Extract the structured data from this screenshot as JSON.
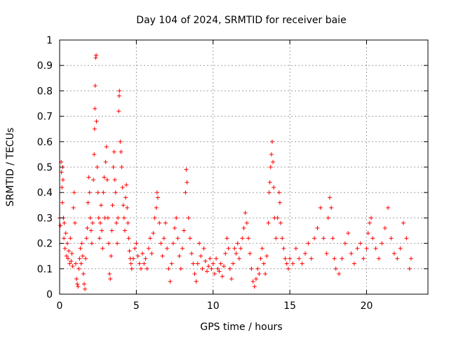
{
  "chart_data": {
    "type": "scatter",
    "title": "Day 104 of 2024, SRMTID for receiver baie",
    "xlabel": "GPS time / hours",
    "ylabel": "SRMTID / TECUs",
    "xlim": [
      0,
      24
    ],
    "ylim": [
      0,
      1
    ],
    "xticks": [
      0,
      5,
      10,
      15,
      20
    ],
    "yticks": [
      0,
      0.1,
      0.2,
      0.3,
      0.4,
      0.5,
      0.6,
      0.7,
      0.8,
      0.9,
      1
    ],
    "grid": true,
    "marker": "+",
    "color": "#ff0000",
    "series": [
      {
        "name": "SRMTID",
        "points": [
          [
            0.0,
            0.3
          ],
          [
            0.05,
            0.27
          ],
          [
            0.1,
            0.52
          ],
          [
            0.12,
            0.48
          ],
          [
            0.15,
            0.42
          ],
          [
            0.18,
            0.36
          ],
          [
            0.2,
            0.5
          ],
          [
            0.22,
            0.45
          ],
          [
            0.25,
            0.3
          ],
          [
            0.28,
            0.22
          ],
          [
            0.3,
            0.28
          ],
          [
            0.35,
            0.18
          ],
          [
            0.4,
            0.24
          ],
          [
            0.45,
            0.15
          ],
          [
            0.5,
            0.2
          ],
          [
            0.55,
            0.14
          ],
          [
            0.6,
            0.17
          ],
          [
            0.65,
            0.12
          ],
          [
            0.7,
            0.22
          ],
          [
            0.75,
            0.13
          ],
          [
            0.8,
            0.16
          ],
          [
            0.85,
            0.11
          ],
          [
            0.9,
            0.34
          ],
          [
            0.95,
            0.4
          ],
          [
            1.0,
            0.28
          ],
          [
            1.05,
            0.12
          ],
          [
            1.1,
            0.06
          ],
          [
            1.15,
            0.04
          ],
          [
            1.2,
            0.03
          ],
          [
            1.25,
            0.1
          ],
          [
            1.3,
            0.14
          ],
          [
            1.35,
            0.18
          ],
          [
            1.4,
            0.12
          ],
          [
            1.45,
            0.2
          ],
          [
            1.5,
            0.15
          ],
          [
            1.55,
            0.08
          ],
          [
            1.6,
            0.04
          ],
          [
            1.65,
            0.02
          ],
          [
            1.7,
            0.14
          ],
          [
            1.75,
            0.22
          ],
          [
            1.8,
            0.26
          ],
          [
            1.85,
            0.36
          ],
          [
            1.9,
            0.46
          ],
          [
            1.95,
            0.4
          ],
          [
            2.0,
            0.3
          ],
          [
            2.05,
            0.25
          ],
          [
            2.1,
            0.2
          ],
          [
            2.15,
            0.28
          ],
          [
            2.2,
            0.45
          ],
          [
            2.25,
            0.55
          ],
          [
            2.28,
            0.65
          ],
          [
            2.3,
            0.73
          ],
          [
            2.32,
            0.82
          ],
          [
            2.35,
            0.93
          ],
          [
            2.38,
            0.94
          ],
          [
            2.4,
            0.68
          ],
          [
            2.45,
            0.5
          ],
          [
            2.5,
            0.4
          ],
          [
            2.55,
            0.3
          ],
          [
            2.6,
            0.22
          ],
          [
            2.65,
            0.28
          ],
          [
            2.7,
            0.35
          ],
          [
            2.75,
            0.25
          ],
          [
            2.8,
            0.18
          ],
          [
            2.85,
            0.4
          ],
          [
            2.9,
            0.46
          ],
          [
            2.95,
            0.3
          ],
          [
            3.0,
            0.52
          ],
          [
            3.05,
            0.58
          ],
          [
            3.1,
            0.45
          ],
          [
            3.15,
            0.3
          ],
          [
            3.2,
            0.2
          ],
          [
            3.25,
            0.08
          ],
          [
            3.3,
            0.06
          ],
          [
            3.35,
            0.15
          ],
          [
            3.4,
            0.25
          ],
          [
            3.45,
            0.35
          ],
          [
            3.5,
            0.5
          ],
          [
            3.55,
            0.56
          ],
          [
            3.6,
            0.45
          ],
          [
            3.65,
            0.4
          ],
          [
            3.7,
            0.28
          ],
          [
            3.75,
            0.2
          ],
          [
            3.8,
            0.3
          ],
          [
            3.85,
            0.72
          ],
          [
            3.88,
            0.78
          ],
          [
            3.9,
            0.8
          ],
          [
            3.95,
            0.6
          ],
          [
            4.0,
            0.56
          ],
          [
            4.05,
            0.5
          ],
          [
            4.1,
            0.42
          ],
          [
            4.15,
            0.35
          ],
          [
            4.2,
            0.3
          ],
          [
            4.25,
            0.25
          ],
          [
            4.3,
            0.38
          ],
          [
            4.35,
            0.43
          ],
          [
            4.4,
            0.34
          ],
          [
            4.45,
            0.28
          ],
          [
            4.5,
            0.22
          ],
          [
            4.55,
            0.17
          ],
          [
            4.6,
            0.14
          ],
          [
            4.65,
            0.12
          ],
          [
            4.7,
            0.1
          ],
          [
            4.8,
            0.14
          ],
          [
            4.9,
            0.18
          ],
          [
            5.0,
            0.2
          ],
          [
            5.1,
            0.15
          ],
          [
            5.2,
            0.12
          ],
          [
            5.3,
            0.1
          ],
          [
            5.4,
            0.16
          ],
          [
            5.5,
            0.12
          ],
          [
            5.6,
            0.14
          ],
          [
            5.7,
            0.1
          ],
          [
            5.8,
            0.18
          ],
          [
            5.9,
            0.22
          ],
          [
            6.0,
            0.16
          ],
          [
            6.1,
            0.24
          ],
          [
            6.2,
            0.3
          ],
          [
            6.3,
            0.34
          ],
          [
            6.35,
            0.4
          ],
          [
            6.4,
            0.38
          ],
          [
            6.5,
            0.28
          ],
          [
            6.6,
            0.2
          ],
          [
            6.7,
            0.15
          ],
          [
            6.8,
            0.22
          ],
          [
            6.9,
            0.28
          ],
          [
            7.0,
            0.18
          ],
          [
            7.1,
            0.1
          ],
          [
            7.2,
            0.05
          ],
          [
            7.3,
            0.12
          ],
          [
            7.4,
            0.2
          ],
          [
            7.5,
            0.26
          ],
          [
            7.6,
            0.3
          ],
          [
            7.7,
            0.22
          ],
          [
            7.8,
            0.15
          ],
          [
            7.9,
            0.1
          ],
          [
            8.0,
            0.18
          ],
          [
            8.1,
            0.25
          ],
          [
            8.2,
            0.4
          ],
          [
            8.25,
            0.49
          ],
          [
            8.3,
            0.44
          ],
          [
            8.4,
            0.3
          ],
          [
            8.5,
            0.22
          ],
          [
            8.6,
            0.16
          ],
          [
            8.7,
            0.12
          ],
          [
            8.8,
            0.08
          ],
          [
            8.9,
            0.05
          ],
          [
            9.0,
            0.12
          ],
          [
            9.1,
            0.2
          ],
          [
            9.2,
            0.15
          ],
          [
            9.3,
            0.1
          ],
          [
            9.4,
            0.18
          ],
          [
            9.5,
            0.13
          ],
          [
            9.6,
            0.09
          ],
          [
            9.7,
            0.11
          ],
          [
            9.8,
            0.14
          ],
          [
            9.9,
            0.1
          ],
          [
            10.0,
            0.12
          ],
          [
            10.1,
            0.08
          ],
          [
            10.2,
            0.14
          ],
          [
            10.3,
            0.1
          ],
          [
            10.4,
            0.09
          ],
          [
            10.5,
            0.12
          ],
          [
            10.6,
            0.07
          ],
          [
            10.7,
            0.11
          ],
          [
            10.8,
            0.16
          ],
          [
            10.9,
            0.22
          ],
          [
            11.0,
            0.18
          ],
          [
            11.1,
            0.1
          ],
          [
            11.2,
            0.06
          ],
          [
            11.3,
            0.12
          ],
          [
            11.4,
            0.18
          ],
          [
            11.5,
            0.16
          ],
          [
            11.6,
            0.2
          ],
          [
            11.7,
            0.14
          ],
          [
            11.8,
            0.18
          ],
          [
            11.9,
            0.22
          ],
          [
            12.0,
            0.26
          ],
          [
            12.1,
            0.32
          ],
          [
            12.2,
            0.28
          ],
          [
            12.3,
            0.22
          ],
          [
            12.4,
            0.16
          ],
          [
            12.5,
            0.1
          ],
          [
            12.6,
            0.05
          ],
          [
            12.7,
            0.03
          ],
          [
            12.8,
            0.06
          ],
          [
            12.9,
            0.1
          ],
          [
            13.0,
            0.08
          ],
          [
            13.1,
            0.14
          ],
          [
            13.2,
            0.18
          ],
          [
            13.3,
            0.12
          ],
          [
            13.4,
            0.08
          ],
          [
            13.5,
            0.15
          ],
          [
            13.6,
            0.28
          ],
          [
            13.65,
            0.4
          ],
          [
            13.7,
            0.44
          ],
          [
            13.75,
            0.5
          ],
          [
            13.8,
            0.55
          ],
          [
            13.85,
            0.6
          ],
          [
            13.9,
            0.52
          ],
          [
            13.95,
            0.42
          ],
          [
            14.0,
            0.3
          ],
          [
            14.1,
            0.22
          ],
          [
            14.2,
            0.3
          ],
          [
            14.3,
            0.4
          ],
          [
            14.35,
            0.36
          ],
          [
            14.4,
            0.28
          ],
          [
            14.5,
            0.22
          ],
          [
            14.6,
            0.18
          ],
          [
            14.7,
            0.14
          ],
          [
            14.8,
            0.12
          ],
          [
            14.9,
            0.1
          ],
          [
            15.0,
            0.14
          ],
          [
            15.2,
            0.12
          ],
          [
            15.4,
            0.18
          ],
          [
            15.6,
            0.14
          ],
          [
            15.8,
            0.12
          ],
          [
            16.0,
            0.16
          ],
          [
            16.2,
            0.2
          ],
          [
            16.4,
            0.14
          ],
          [
            16.6,
            0.22
          ],
          [
            16.8,
            0.26
          ],
          [
            17.0,
            0.34
          ],
          [
            17.2,
            0.22
          ],
          [
            17.4,
            0.16
          ],
          [
            17.5,
            0.3
          ],
          [
            17.6,
            0.38
          ],
          [
            17.7,
            0.34
          ],
          [
            17.8,
            0.22
          ],
          [
            17.9,
            0.14
          ],
          [
            18.0,
            0.1
          ],
          [
            18.2,
            0.08
          ],
          [
            18.4,
            0.14
          ],
          [
            18.6,
            0.2
          ],
          [
            18.8,
            0.24
          ],
          [
            19.0,
            0.16
          ],
          [
            19.2,
            0.12
          ],
          [
            19.4,
            0.18
          ],
          [
            19.6,
            0.2
          ],
          [
            19.8,
            0.14
          ],
          [
            20.0,
            0.18
          ],
          [
            20.1,
            0.24
          ],
          [
            20.2,
            0.28
          ],
          [
            20.3,
            0.3
          ],
          [
            20.4,
            0.22
          ],
          [
            20.6,
            0.18
          ],
          [
            20.8,
            0.14
          ],
          [
            21.0,
            0.2
          ],
          [
            21.2,
            0.26
          ],
          [
            21.4,
            0.34
          ],
          [
            21.6,
            0.22
          ],
          [
            21.8,
            0.16
          ],
          [
            22.0,
            0.14
          ],
          [
            22.2,
            0.18
          ],
          [
            22.4,
            0.28
          ],
          [
            22.6,
            0.22
          ],
          [
            22.8,
            0.1
          ],
          [
            22.9,
            0.14
          ]
        ]
      }
    ]
  }
}
